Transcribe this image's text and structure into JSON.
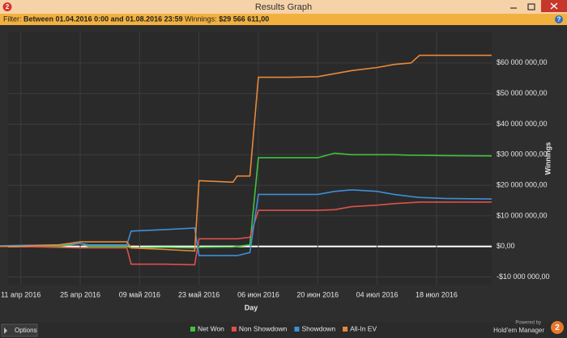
{
  "window": {
    "title": "Results Graph",
    "app_icon": "2",
    "help": "?",
    "filter_label": "Filter:",
    "filter_range": "Between 01.04.2016 0:00 and 01.08.2016 23:59",
    "winnings_label": "Winnings:",
    "winnings_value": "$29 566 611,00",
    "options": "Options",
    "powered_by": "Powered by",
    "product": "Hold'em Manager",
    "logo": "2"
  },
  "chart_data": {
    "type": "line",
    "x_label": "Day",
    "y_label": "Winnings",
    "x": [
      "2016-04-01",
      "2016-04-10",
      "2016-04-20",
      "2016-04-25",
      "2016-04-27",
      "2016-05-06",
      "2016-05-07",
      "2016-05-15",
      "2016-05-22",
      "2016-05-23",
      "2016-05-31",
      "2016-06-01",
      "2016-06-04",
      "2016-06-06",
      "2016-06-13",
      "2016-06-20",
      "2016-06-24",
      "2016-06-28",
      "2016-07-04",
      "2016-07-08",
      "2016-07-12",
      "2016-07-14",
      "2016-07-20",
      "2016-07-31"
    ],
    "series": [
      {
        "name": "Net Won",
        "color": "#3ec43e",
        "values": [
          0,
          0,
          0,
          1000000,
          0,
          0,
          -500000,
          -300000,
          -500000,
          -300000,
          -200000,
          0,
          500000,
          29000000,
          29000000,
          29000000,
          30500000,
          30000000,
          30000000,
          30000000,
          29800000,
          29800000,
          29700000,
          29600000
        ]
      },
      {
        "name": "Non Showdown",
        "color": "#e0504a",
        "values": [
          0,
          0,
          -300000,
          -500000,
          -500000,
          -500000,
          -5800000,
          -5800000,
          -6000000,
          2500000,
          2500000,
          2500000,
          3000000,
          11800000,
          11800000,
          11800000,
          12000000,
          13000000,
          13500000,
          14000000,
          14300000,
          14500000,
          14500000,
          14500000
        ]
      },
      {
        "name": "Showdown",
        "color": "#3d8fd6",
        "values": [
          0,
          300000,
          500000,
          1000000,
          500000,
          500000,
          5000000,
          5500000,
          6000000,
          -3000000,
          -3000000,
          -3000000,
          -2000000,
          17000000,
          17000000,
          17000000,
          18000000,
          18500000,
          18000000,
          17000000,
          16300000,
          16000000,
          15700000,
          15500000
        ]
      },
      {
        "name": "All-In EV",
        "color": "#e8883a",
        "values": [
          0,
          0,
          500000,
          1500000,
          1500000,
          1500000,
          -500000,
          -1000000,
          -1500000,
          21500000,
          21000000,
          23000000,
          23000000,
          55300000,
          55300000,
          55500000,
          56500000,
          57500000,
          58500000,
          59500000,
          60000000,
          62500000,
          62500000,
          62500000
        ]
      }
    ],
    "xlim": [
      "2016-04-08",
      "2016-07-31"
    ],
    "xticks": [
      {
        "value": "2016-04-11",
        "label": "11 апр 2016"
      },
      {
        "value": "2016-04-25",
        "label": "25 апр 2016"
      },
      {
        "value": "2016-05-09",
        "label": "09 май 2016"
      },
      {
        "value": "2016-05-23",
        "label": "23 май 2016"
      },
      {
        "value": "2016-06-06",
        "label": "06 июн 2016"
      },
      {
        "value": "2016-06-20",
        "label": "20 июн 2016"
      },
      {
        "value": "2016-07-04",
        "label": "04 июл 2016"
      },
      {
        "value": "2016-07-18",
        "label": "18 июл 2016"
      }
    ],
    "ylim": [
      -12500000,
      70000000
    ],
    "yticks": [
      {
        "value": -10000000,
        "label": "-$10 000 000,00"
      },
      {
        "value": 0,
        "label": "$0,00"
      },
      {
        "value": 10000000,
        "label": "$10 000 000,00"
      },
      {
        "value": 20000000,
        "label": "$20 000 000,00"
      },
      {
        "value": 30000000,
        "label": "$30 000 000,00"
      },
      {
        "value": 40000000,
        "label": "$40 000 000,00"
      },
      {
        "value": 50000000,
        "label": "$50 000 000,00"
      },
      {
        "value": 60000000,
        "label": "$60 000 000,00"
      }
    ],
    "grid": true,
    "legend": "bottom"
  }
}
